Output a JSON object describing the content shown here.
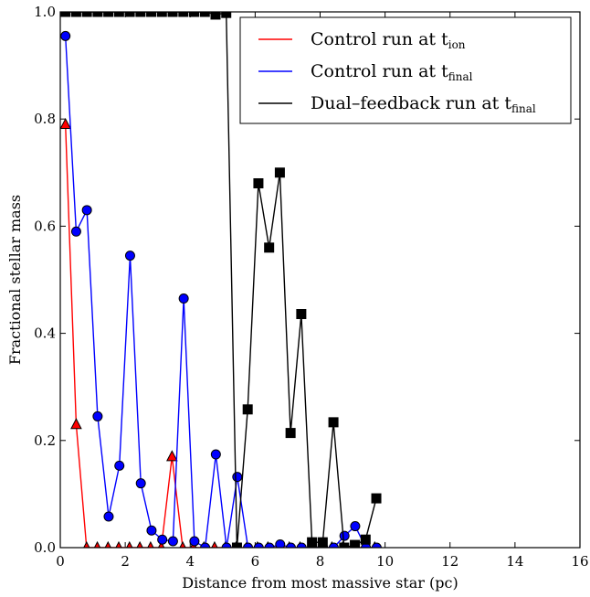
{
  "chart_data": {
    "type": "line",
    "xlabel": "Distance from most massive star (pc)",
    "ylabel": "Fractional stellar mass",
    "xlim": [
      0,
      16
    ],
    "ylim": [
      0,
      1.0
    ],
    "xticks": [
      "0",
      "2",
      "4",
      "6",
      "8",
      "10",
      "12",
      "14",
      "16"
    ],
    "yticks": [
      "0.0",
      "0.2",
      "0.4",
      "0.6",
      "0.8",
      "1.0"
    ],
    "grid": false,
    "legend_position": "top-right",
    "series": [
      {
        "name": "Control run at t",
        "name_sub": "ion",
        "color": "#ff0000",
        "marker": "triangle",
        "marker_color": "#ff0000",
        "x": [
          0.16,
          0.49,
          0.81,
          1.14,
          1.47,
          1.8,
          2.13,
          2.45,
          2.78,
          3.11,
          3.44,
          3.77,
          4.1,
          4.42,
          4.75,
          5.08,
          5.41,
          5.74,
          6.07,
          6.39,
          6.72,
          7.05,
          7.38,
          7.71,
          8.04,
          8.36,
          8.69,
          9.02,
          9.35,
          9.68
        ],
        "y": [
          0.79,
          0.23,
          0.0,
          0.0,
          0.0,
          0.0,
          0.0,
          0.0,
          0.0,
          0.0,
          0.17,
          0.0,
          0.0,
          0.0,
          0.0,
          0.0,
          0.0,
          0.0,
          0.0,
          0.0,
          0.0,
          0.0,
          0.0,
          0.0,
          0.0,
          0.0,
          0.0,
          0.0,
          0.0,
          0.0
        ]
      },
      {
        "name": "Control run at t",
        "name_sub": "final",
        "color": "#0000ff",
        "marker": "circle",
        "marker_color": "#0000ff",
        "x": [
          0.16,
          0.49,
          0.82,
          1.15,
          1.49,
          1.82,
          2.15,
          2.48,
          2.81,
          3.14,
          3.47,
          3.8,
          4.13,
          4.46,
          4.79,
          5.12,
          5.45,
          5.78,
          6.11,
          6.44,
          6.77,
          7.1,
          7.43,
          7.76,
          8.09,
          8.42,
          8.75,
          9.08,
          9.41,
          9.74
        ],
        "y": [
          0.955,
          0.59,
          0.63,
          0.245,
          0.058,
          0.153,
          0.545,
          0.12,
          0.032,
          0.015,
          0.012,
          0.465,
          0.012,
          0.0,
          0.174,
          0.0,
          0.132,
          0.0,
          0.0,
          0.0,
          0.006,
          0.0,
          0.0,
          0.0,
          0.0,
          0.0,
          0.022,
          0.04,
          0.0,
          0.0
        ]
      },
      {
        "name": "Dual–feedback run at t",
        "name_sub": "final",
        "color": "#000000",
        "marker": "square",
        "marker_color": "#000000",
        "x": [
          0.16,
          0.49,
          0.82,
          1.15,
          1.48,
          1.81,
          2.14,
          2.47,
          2.8,
          3.13,
          3.46,
          3.79,
          4.12,
          4.45,
          4.78,
          5.11,
          5.44,
          5.77,
          6.1,
          6.43,
          6.76,
          7.09,
          7.42,
          7.75,
          8.08,
          8.41,
          8.74,
          9.07,
          9.4,
          9.73
        ],
        "y": [
          1.0,
          1.0,
          1.0,
          1.0,
          1.0,
          1.0,
          1.0,
          1.0,
          1.0,
          1.0,
          1.0,
          1.0,
          1.0,
          1.0,
          0.995,
          0.998,
          0.0,
          0.258,
          0.68,
          0.56,
          0.7,
          0.214,
          0.436,
          0.01,
          0.01,
          0.234,
          0.0,
          0.005,
          0.015,
          0.092
        ]
      }
    ]
  }
}
